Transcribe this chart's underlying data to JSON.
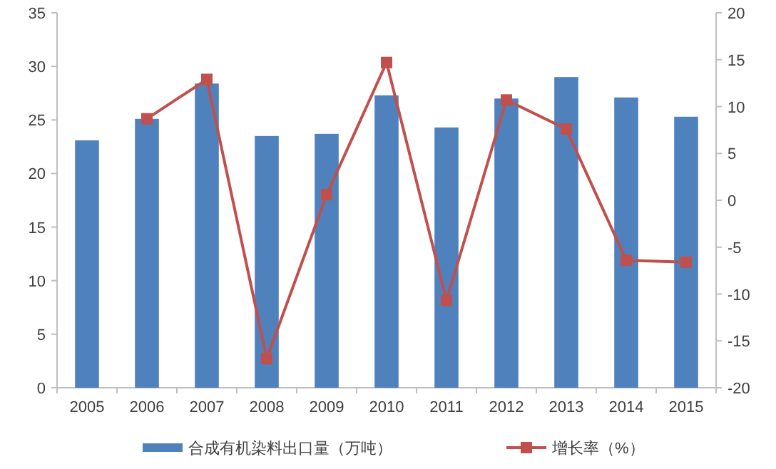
{
  "chart_data": {
    "type": "bar",
    "categories": [
      "2005",
      "2006",
      "2007",
      "2008",
      "2009",
      "2010",
      "2011",
      "2012",
      "2013",
      "2014",
      "2015"
    ],
    "series": [
      {
        "name": "合成有机染料出口量（万吨）",
        "color": "#4f81bd",
        "values": [
          23.1,
          25.1,
          28.4,
          23.5,
          23.7,
          27.3,
          24.3,
          27.0,
          29.0,
          27.1,
          25.3
        ]
      },
      {
        "name": "增长率（%）",
        "type": "line",
        "axis": "y2",
        "color": "#c0504d",
        "marker": "square",
        "values": [
          null,
          8.7,
          12.9,
          -16.9,
          0.6,
          14.7,
          -10.7,
          10.7,
          7.6,
          -6.4,
          -6.6
        ]
      }
    ],
    "ylim": [
      0,
      35
    ],
    "yticks": [
      0,
      5,
      10,
      15,
      20,
      25,
      30,
      35
    ],
    "y2lim": [
      -20,
      20
    ],
    "y2ticks": [
      -20,
      -15,
      -10,
      -5,
      0,
      5,
      10,
      15,
      20
    ],
    "legend": "bottom"
  }
}
